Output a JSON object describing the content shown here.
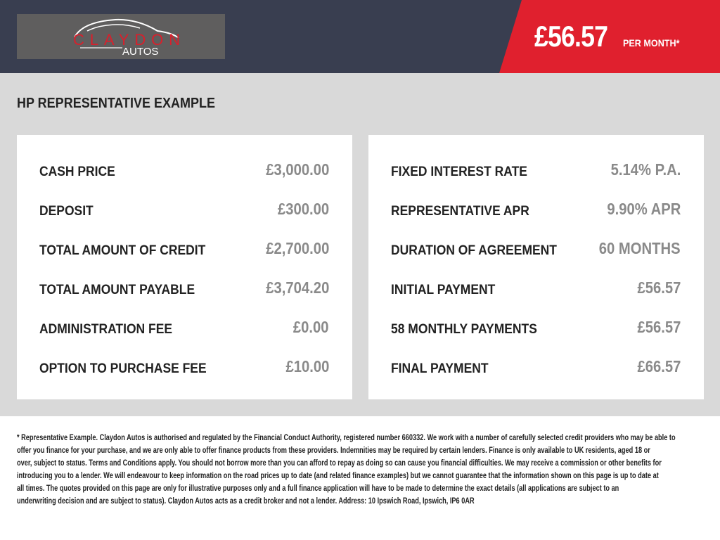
{
  "brand": {
    "name": "CLAYDON",
    "sub": "AUTOS"
  },
  "header": {
    "price": "£56.57",
    "per_month": "PER MONTH*"
  },
  "title": "HP REPRESENTATIVE EXAMPLE",
  "left": [
    {
      "label": "CASH PRICE",
      "value": "£3,000.00"
    },
    {
      "label": "DEPOSIT",
      "value": "£300.00"
    },
    {
      "label": "TOTAL AMOUNT OF CREDIT",
      "value": "£2,700.00"
    },
    {
      "label": "TOTAL AMOUNT PAYABLE",
      "value": "£3,704.20"
    },
    {
      "label": "ADMINISTRATION FEE",
      "value": "£0.00"
    },
    {
      "label": "OPTION TO PURCHASE FEE",
      "value": "£10.00"
    }
  ],
  "right": [
    {
      "label": "FIXED INTEREST RATE",
      "value": "5.14% P.A."
    },
    {
      "label": "REPRESENTATIVE APR",
      "value": "9.90% APR"
    },
    {
      "label": "DURATION OF AGREEMENT",
      "value": "60 MONTHS"
    },
    {
      "label": "INITIAL PAYMENT",
      "value": "£56.57"
    },
    {
      "label": "58 MONTHLY PAYMENTS",
      "value": "£56.57"
    },
    {
      "label": "FINAL PAYMENT",
      "value": "£66.57"
    }
  ],
  "footer_lines": [
    "* Representative Example. Claydon Autos is authorised and regulated by the Financial Conduct Authority, registered number 660332. We work with a number of carefully selected credit providers who may be able to",
    "offer you finance for your purchase, and we are only able to offer finance products from these providers. Indemnities may be required by certain lenders. Finance is only available to UK residents, aged 18 or",
    "over, subject to status. Terms and Conditions apply. You should not borrow more than you can afford to repay as doing so can cause you financial difficulties. We may receive a commission or other benefits for",
    "introducing you to a lender. We will endeavour to keep information on the road prices up to date (and related finance examples) but we cannot guarantee that the information shown on this page is up to date at",
    "all times. The quotes provided on this page are only for illustrative purposes only and a full finance application will have to be made to determine the exact details (all applications are subject to an",
    "underwriting decision and are subject to status). Claydon Autos acts as a credit broker and not a lender. Address: 10 Ipswich Road, Ipswich, IP6 0AR"
  ]
}
